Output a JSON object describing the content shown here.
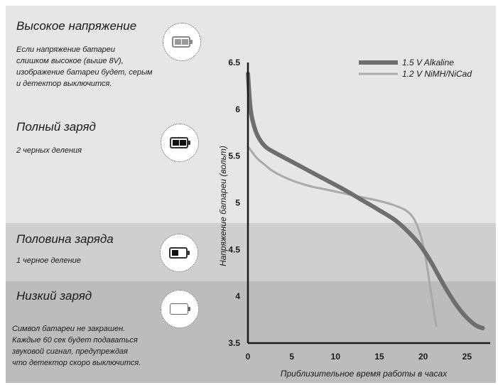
{
  "colors": {
    "band_top": "#e6e6e6",
    "band_mid": "#cfcfcf",
    "band_low": "#bcbcbc",
    "alkaline": "#6e6e6e",
    "nimh": "#a9a9a9",
    "axis": "#1a1a1a"
  },
  "sections": [
    {
      "title": "Высокое напряжение",
      "lines": [
        "Если напряжение батареи",
        "слишком высокое (выше 8V),",
        "изображение батареи будет, серым",
        "и детектор выключится."
      ],
      "icon": "battery-gray-icon"
    },
    {
      "title": "Полный заряд",
      "lines": [
        "2 черных деления"
      ],
      "icon": "battery-full-icon"
    },
    {
      "title": "Половина заряда",
      "lines": [
        "1 черное деление"
      ],
      "icon": "battery-half-icon"
    },
    {
      "title": "Низкий заряд",
      "lines": [
        "Символ батареи не закрашен.",
        "Каждые 60 сек будет подаваться",
        "звуковой сигнал, предупреждая",
        "что детектор скоро выключится."
      ],
      "icon": "battery-empty-icon"
    }
  ],
  "chart_data": {
    "type": "line",
    "xlabel": "Приблизительное время работы в часах",
    "ylabel": "Напряжение батареи (вольт)",
    "xlim": [
      0,
      27
    ],
    "ylim": [
      3.5,
      6.5
    ],
    "xticks": [
      "0",
      "5",
      "10",
      "15",
      "20",
      "25"
    ],
    "yticks": [
      "3.5",
      "4",
      "4.5",
      "5",
      "5.5",
      "6",
      "6.5"
    ],
    "legend_position": "top-right",
    "series": [
      {
        "name": "1.5 V Alkaline",
        "x": [
          0,
          0.3,
          0.7,
          1.2,
          2,
          3,
          5,
          7,
          9,
          11,
          13,
          15,
          17,
          19,
          20,
          21,
          22,
          23,
          24,
          25,
          26,
          26.8
        ],
        "y": [
          6.38,
          6.0,
          5.82,
          5.7,
          5.6,
          5.54,
          5.44,
          5.34,
          5.24,
          5.14,
          5.03,
          4.92,
          4.8,
          4.62,
          4.5,
          4.35,
          4.18,
          4.02,
          3.88,
          3.77,
          3.69,
          3.66
        ]
      },
      {
        "name": "1.2 V NiMH/NiCad",
        "x": [
          0,
          0.5,
          1,
          2,
          3,
          5,
          7,
          9,
          11,
          13,
          15,
          16.5,
          18,
          19,
          19.8,
          20.3,
          20.8,
          21.2,
          21.5
        ],
        "y": [
          5.6,
          5.54,
          5.48,
          5.4,
          5.33,
          5.24,
          5.18,
          5.14,
          5.1,
          5.06,
          5.02,
          4.98,
          4.92,
          4.82,
          4.62,
          4.4,
          4.1,
          3.85,
          3.68
        ]
      }
    ]
  }
}
